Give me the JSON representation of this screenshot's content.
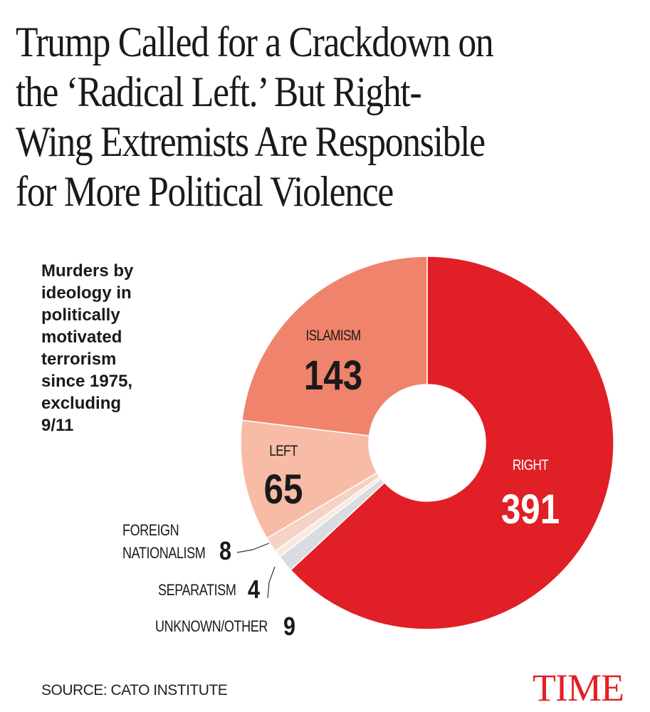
{
  "headline": {
    "lines": [
      "Trump Called for a Crackdown on",
      "the ‘Radical Left.’ But Right-",
      "Wing Extremists Are Responsible",
      "for More Political Violence"
    ]
  },
  "chart_data": {
    "type": "pie",
    "subtitle_lines": [
      "Murders by",
      "ideology in",
      "politically",
      "motivated",
      "terrorism",
      "since 1975,",
      "excluding",
      "9/11"
    ],
    "start_category": "RIGHT",
    "categories": [
      "RIGHT",
      "UNKNOWN/OTHER",
      "SEPARATISM",
      "FOREIGN NATIONALISM",
      "LEFT",
      "ISLAMISM"
    ],
    "values": [
      391,
      9,
      4,
      8,
      65,
      143
    ],
    "label_lines": [
      [
        "RIGHT"
      ],
      [
        "UNKNOWN/OTHER"
      ],
      [
        "SEPARATISM"
      ],
      [
        "FOREIGN",
        "NATIONALISM"
      ],
      [
        "LEFT"
      ],
      [
        "ISLAMISM"
      ]
    ],
    "colors": [
      "#e11f26",
      "#d9dde2",
      "#f6e9e0",
      "#f4d2c4",
      "#f7bba6",
      "#f0836b"
    ],
    "value_label_colors": [
      "#ffffff",
      "#1a1a1a",
      "#1a1a1a",
      "#1a1a1a",
      "#1a1a1a",
      "#1a1a1a"
    ],
    "donut": true
  },
  "footer": {
    "source": "SOURCE: CATO INSTITUTE",
    "logo": "TIME"
  }
}
